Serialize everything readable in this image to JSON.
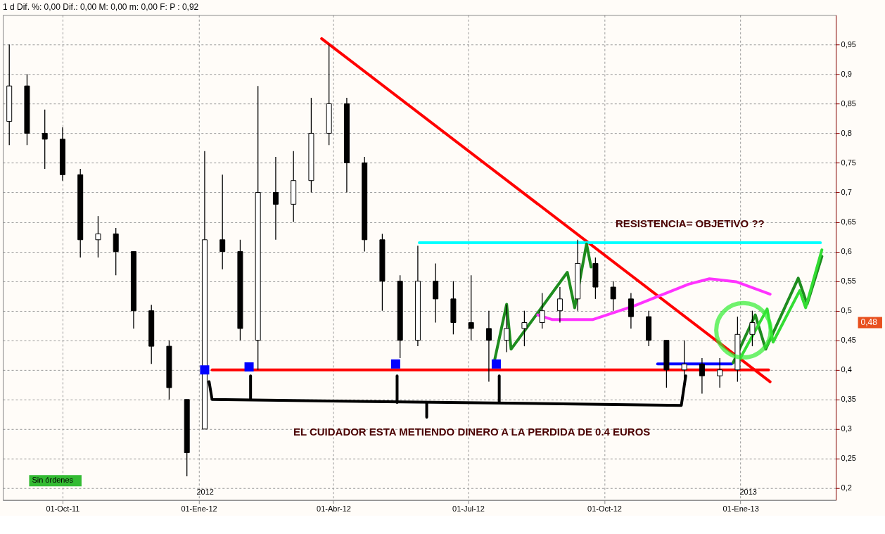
{
  "chart_data": {
    "type": "candlestick",
    "title": "1 d Dif. %: 0,00 Dif.: 0,00 M: 0,00 m: 0,00 F:   P : 0,92",
    "x": [
      "2011-08-26",
      "2011-09-07",
      "2011-09-19",
      "2011-10-01",
      "2011-10-13",
      "2011-10-25",
      "2011-11-06",
      "2011-11-18",
      "2011-11-30",
      "2011-12-12",
      "2011-12-24",
      "2012-01-05",
      "2012-01-17",
      "2012-01-29",
      "2012-02-10",
      "2012-02-22",
      "2012-03-05",
      "2012-03-17",
      "2012-03-29",
      "2012-04-10",
      "2012-04-22",
      "2012-05-04",
      "2012-05-16",
      "2012-05-28",
      "2012-06-09",
      "2012-06-21",
      "2012-07-03",
      "2012-07-15",
      "2012-07-27",
      "2012-08-08",
      "2012-08-20",
      "2012-09-01",
      "2012-09-13",
      "2012-09-25",
      "2012-10-07",
      "2012-10-19",
      "2012-10-31",
      "2012-11-12",
      "2012-11-24",
      "2012-12-06",
      "2012-12-18",
      "2012-12-30",
      "2013-01-09"
    ],
    "ohlc": [
      [
        0.82,
        0.95,
        0.78,
        0.88
      ],
      [
        0.88,
        0.9,
        0.78,
        0.8
      ],
      [
        0.8,
        0.84,
        0.74,
        0.79
      ],
      [
        0.79,
        0.81,
        0.72,
        0.73
      ],
      [
        0.73,
        0.74,
        0.59,
        0.62
      ],
      [
        0.62,
        0.66,
        0.59,
        0.63
      ],
      [
        0.63,
        0.64,
        0.56,
        0.6
      ],
      [
        0.6,
        0.6,
        0.47,
        0.5
      ],
      [
        0.5,
        0.51,
        0.41,
        0.44
      ],
      [
        0.44,
        0.45,
        0.35,
        0.37
      ],
      [
        0.35,
        0.35,
        0.22,
        0.26
      ],
      [
        0.3,
        0.77,
        0.3,
        0.62
      ],
      [
        0.62,
        0.73,
        0.57,
        0.6
      ],
      [
        0.6,
        0.62,
        0.45,
        0.47
      ],
      [
        0.45,
        0.88,
        0.4,
        0.7
      ],
      [
        0.7,
        0.76,
        0.62,
        0.68
      ],
      [
        0.68,
        0.77,
        0.65,
        0.72
      ],
      [
        0.72,
        0.86,
        0.7,
        0.8
      ],
      [
        0.8,
        0.95,
        0.78,
        0.85
      ],
      [
        0.85,
        0.86,
        0.7,
        0.75
      ],
      [
        0.75,
        0.76,
        0.6,
        0.62
      ],
      [
        0.62,
        0.63,
        0.5,
        0.55
      ],
      [
        0.55,
        0.56,
        0.42,
        0.45
      ],
      [
        0.45,
        0.61,
        0.44,
        0.55
      ],
      [
        0.55,
        0.58,
        0.48,
        0.52
      ],
      [
        0.52,
        0.55,
        0.46,
        0.48
      ],
      [
        0.48,
        0.56,
        0.45,
        0.47
      ],
      [
        0.47,
        0.5,
        0.38,
        0.45
      ],
      [
        0.45,
        0.51,
        0.43,
        0.47
      ],
      [
        0.47,
        0.5,
        0.44,
        0.48
      ],
      [
        0.48,
        0.53,
        0.47,
        0.5
      ],
      [
        0.5,
        0.54,
        0.48,
        0.52
      ],
      [
        0.52,
        0.62,
        0.5,
        0.58
      ],
      [
        0.58,
        0.59,
        0.52,
        0.54
      ],
      [
        0.54,
        0.55,
        0.5,
        0.52
      ],
      [
        0.52,
        0.53,
        0.47,
        0.49
      ],
      [
        0.49,
        0.5,
        0.44,
        0.45
      ],
      [
        0.45,
        0.45,
        0.37,
        0.4
      ],
      [
        0.4,
        0.45,
        0.37,
        0.41
      ],
      [
        0.41,
        0.42,
        0.36,
        0.39
      ],
      [
        0.39,
        0.42,
        0.37,
        0.4
      ],
      [
        0.4,
        0.49,
        0.38,
        0.46
      ],
      [
        0.46,
        0.5,
        0.44,
        0.48
      ]
    ],
    "color": "#000000",
    "series": [
      {
        "type": "line",
        "color": "#ff0000",
        "x": [
          "2012-03-24",
          "2013-01-21"
        ],
        "values": [
          0.96,
          0.38
        ]
      },
      {
        "type": "line",
        "color": "#00ffff",
        "x": [
          "2012-05-29",
          "2013-02-24"
        ],
        "values": [
          0.615,
          0.615
        ]
      },
      {
        "type": "line",
        "color": "#ff0000",
        "x": [
          "2012-01-10",
          "2013-01-20"
        ],
        "values": [
          0.4,
          0.4
        ]
      },
      {
        "type": "scatter",
        "marker": "square",
        "color": "#0000ff",
        "x": [
          "2012-01-05",
          "2012-02-04",
          "2012-05-13",
          "2012-07-20"
        ],
        "values": [
          0.4,
          0.405,
          0.41,
          0.41
        ]
      },
      {
        "type": "line",
        "color": "#0000ff",
        "x": [
          "2012-11-06",
          "2012-12-26"
        ],
        "values": [
          0.41,
          0.41
        ]
      },
      {
        "type": "line",
        "color": "#000000",
        "x": [
          "2012-01-08",
          "2012-01-10",
          "2012-11-22",
          "2012-11-25"
        ],
        "values": [
          0.38,
          0.35,
          0.34,
          0.39
        ]
      },
      {
        "type": "line",
        "color": "#000000",
        "x": [
          "2012-02-05",
          "2012-02-05"
        ],
        "values": [
          0.39,
          0.35
        ]
      },
      {
        "type": "line",
        "color": "#000000",
        "x": [
          "2012-05-14",
          "2012-05-14"
        ],
        "values": [
          0.39,
          0.345
        ]
      },
      {
        "type": "line",
        "color": "#000000",
        "x": [
          "2012-07-22",
          "2012-07-22"
        ],
        "values": [
          0.39,
          0.345
        ]
      },
      {
        "type": "line",
        "color": "#000000",
        "x": [
          "2012-06-03",
          "2012-06-03"
        ],
        "values": [
          0.345,
          0.32
        ]
      },
      {
        "type": "line",
        "color": "#1e8c1e",
        "x": [
          "2012-07-19",
          "2012-07-27",
          "2012-07-30",
          "2012-09-06",
          "2012-09-11",
          "2012-09-19",
          "2012-09-22"
        ],
        "values": [
          0.418,
          0.511,
          0.435,
          0.565,
          0.505,
          0.613,
          0.574
        ]
      },
      {
        "type": "line",
        "color": "#1e8c1e",
        "x": [
          "2012-12-27",
          "2013-01-11",
          "2013-01-18",
          "2013-02-09",
          "2013-02-15",
          "2013-02-25"
        ],
        "values": [
          0.412,
          0.493,
          0.435,
          0.555,
          0.511,
          0.592
        ]
      },
      {
        "type": "line",
        "color": "#33dd33",
        "x": [
          "2012-12-31",
          "2013-01-19",
          "2013-01-23",
          "2013-02-10",
          "2013-02-14",
          "2013-02-25"
        ],
        "values": [
          0.416,
          0.503,
          0.447,
          0.534,
          0.505,
          0.603
        ]
      },
      {
        "type": "line",
        "color": "#ff33ff",
        "x": [
          "2012-08-17",
          "2012-08-27",
          "2012-09-23",
          "2012-10-21",
          "2012-11-27",
          "2012-12-11",
          "2012-12-29",
          "2013-01-21"
        ],
        "values": [
          0.493,
          0.485,
          0.485,
          0.508,
          0.545,
          0.554,
          0.549,
          0.528
        ]
      },
      {
        "type": "scatter",
        "marker": "circle",
        "color": "#33ee33",
        "x": [
          "2013-01-03"
        ],
        "values": [
          0.467
        ]
      }
    ],
    "annotations": [
      "RESISTENCIA= OBJETIVO ??",
      "EL CUIDADOR ESTA METIENDO DINERO A LA PERDIDA DE 0.4 EUROS",
      "0,48",
      "2012",
      "2013",
      "Sin órdenes"
    ],
    "xlim": [
      "2011-08-24",
      "2013-03-04"
    ],
    "xticks": [
      {
        "value": "2011-10-01",
        "label": "01-Oct-11"
      },
      {
        "value": "2012-01-01",
        "label": "01-Ene-12"
      },
      {
        "value": "2012-04-01",
        "label": "01-Abr-12"
      },
      {
        "value": "2012-07-01",
        "label": "01-Jul-12"
      },
      {
        "value": "2012-10-01",
        "label": "01-Oct-12"
      },
      {
        "value": "2013-01-01",
        "label": "01-Ene-13"
      }
    ],
    "ylim": [
      0.18,
      1.0
    ],
    "yticks": [
      {
        "value": 0.2,
        "label": "0,2"
      },
      {
        "value": 0.25,
        "label": "0,25"
      },
      {
        "value": 0.3,
        "label": "0,3"
      },
      {
        "value": 0.35,
        "label": "0,35"
      },
      {
        "value": 0.4,
        "label": "0,4"
      },
      {
        "value": 0.45,
        "label": "0,45"
      },
      {
        "value": 0.5,
        "label": "0,5"
      },
      {
        "value": 0.55,
        "label": "0,55"
      },
      {
        "value": 0.6,
        "label": "0,6"
      },
      {
        "value": 0.65,
        "label": "0,65"
      },
      {
        "value": 0.7,
        "label": "0,7"
      },
      {
        "value": 0.75,
        "label": "0,75"
      },
      {
        "value": 0.8,
        "label": "0,8"
      },
      {
        "value": 0.85,
        "label": "0,85"
      },
      {
        "value": 0.9,
        "label": "0,9"
      },
      {
        "value": 0.95,
        "label": "0,95"
      }
    ],
    "grid": true
  }
}
